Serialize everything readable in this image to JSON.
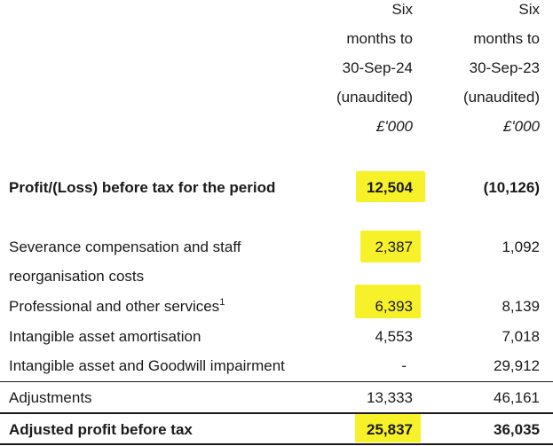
{
  "header": {
    "col1": [
      "Six",
      "months to",
      "30-Sep-24",
      "(unaudited)",
      "£'000"
    ],
    "col2": [
      "Six",
      "months to",
      "30-Sep-23",
      "(unaudited)",
      "£'000"
    ]
  },
  "rows": [
    {
      "label": "Profit/(Loss) before tax for the period",
      "v1": "12,504",
      "v2": "(10,126)"
    },
    {
      "label": "Severance compensation and staff",
      "label2": "reorganisation costs",
      "v1": "2,387",
      "v2": "1,092"
    },
    {
      "label": "Professional and other services",
      "sup": "1",
      "v1": "6,393",
      "v2": "8,139"
    },
    {
      "label": "Intangible asset amortisation",
      "v1": "4,553",
      "v2": "7,018"
    },
    {
      "label": "Intangible asset and Goodwill impairment",
      "v1": "-",
      "v2": "29,912"
    },
    {
      "label": "Adjustments",
      "v1": "13,333",
      "v2": "46,161"
    },
    {
      "label": "Adjusted profit before tax",
      "v1": "25,837",
      "v2": "36,035"
    }
  ],
  "highlight_color": "#f7f12a"
}
